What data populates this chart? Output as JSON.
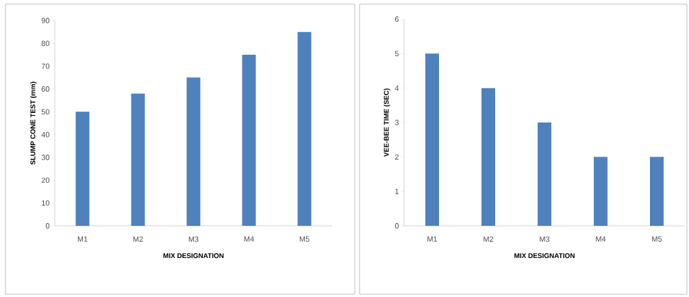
{
  "chart_data": [
    {
      "type": "bar",
      "categories": [
        "M1",
        "M2",
        "M3",
        "M4",
        "M5"
      ],
      "values": [
        50,
        58,
        65,
        75,
        85
      ],
      "color": "#4f81bd",
      "xlabel": "MIX DESIGNATION",
      "ylabel": "SLUMP CONE TEST (mm)",
      "ylim": [
        0,
        90
      ],
      "yticks": [
        0,
        10,
        20,
        30,
        40,
        50,
        60,
        70,
        80,
        90
      ]
    },
    {
      "type": "bar",
      "categories": [
        "M1",
        "M2",
        "M3",
        "M4",
        "M5"
      ],
      "values": [
        5,
        4,
        3,
        2,
        2
      ],
      "color": "#4f81bd",
      "xlabel": "MIX DESIGNATION",
      "ylabel": "VEE-BEE TIME (SEC)",
      "ylim": [
        0,
        6
      ],
      "yticks": [
        0,
        1,
        2,
        3,
        4,
        5,
        6
      ]
    }
  ]
}
